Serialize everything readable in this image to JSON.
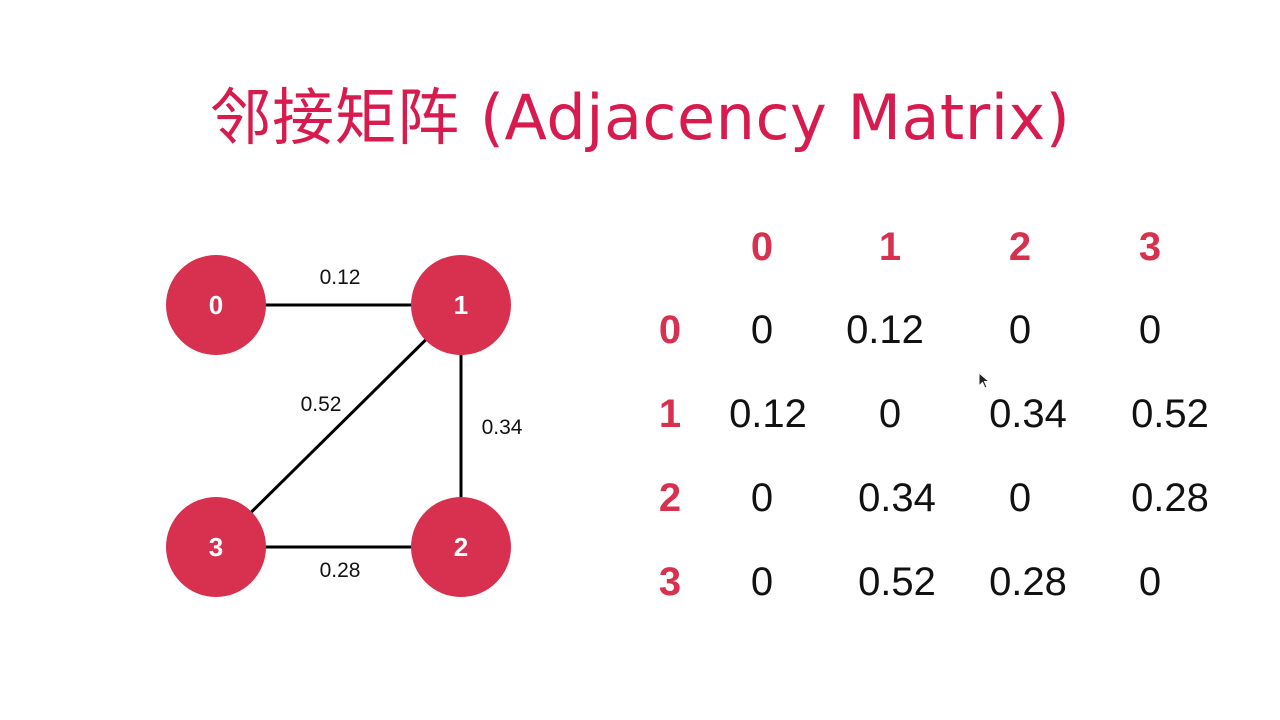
{
  "title": "邻接矩阵 (Adjacency Matrix)",
  "graph": {
    "nodes": [
      {
        "id": "0",
        "label": "0"
      },
      {
        "id": "1",
        "label": "1"
      },
      {
        "id": "2",
        "label": "2"
      },
      {
        "id": "3",
        "label": "3"
      }
    ],
    "edges": [
      {
        "from": "0",
        "to": "1",
        "weight": "0.12"
      },
      {
        "from": "1",
        "to": "2",
        "weight": "0.34"
      },
      {
        "from": "1",
        "to": "3",
        "weight": "0.52"
      },
      {
        "from": "3",
        "to": "2",
        "weight": "0.28"
      }
    ]
  },
  "matrix": {
    "col_headers": [
      "0",
      "1",
      "2",
      "3"
    ],
    "row_headers": [
      "0",
      "1",
      "2",
      "3"
    ],
    "rows": [
      [
        "0",
        "0.12",
        "0",
        "0"
      ],
      [
        "0.12",
        "0",
        "0.34",
        "0.52"
      ],
      [
        "0",
        "0.34",
        "0",
        "0.28"
      ],
      [
        "0",
        "0.52",
        "0.28",
        "0"
      ]
    ]
  },
  "colors": {
    "accent": "#d8304f",
    "title": "#d81b4e",
    "text": "#111111"
  }
}
